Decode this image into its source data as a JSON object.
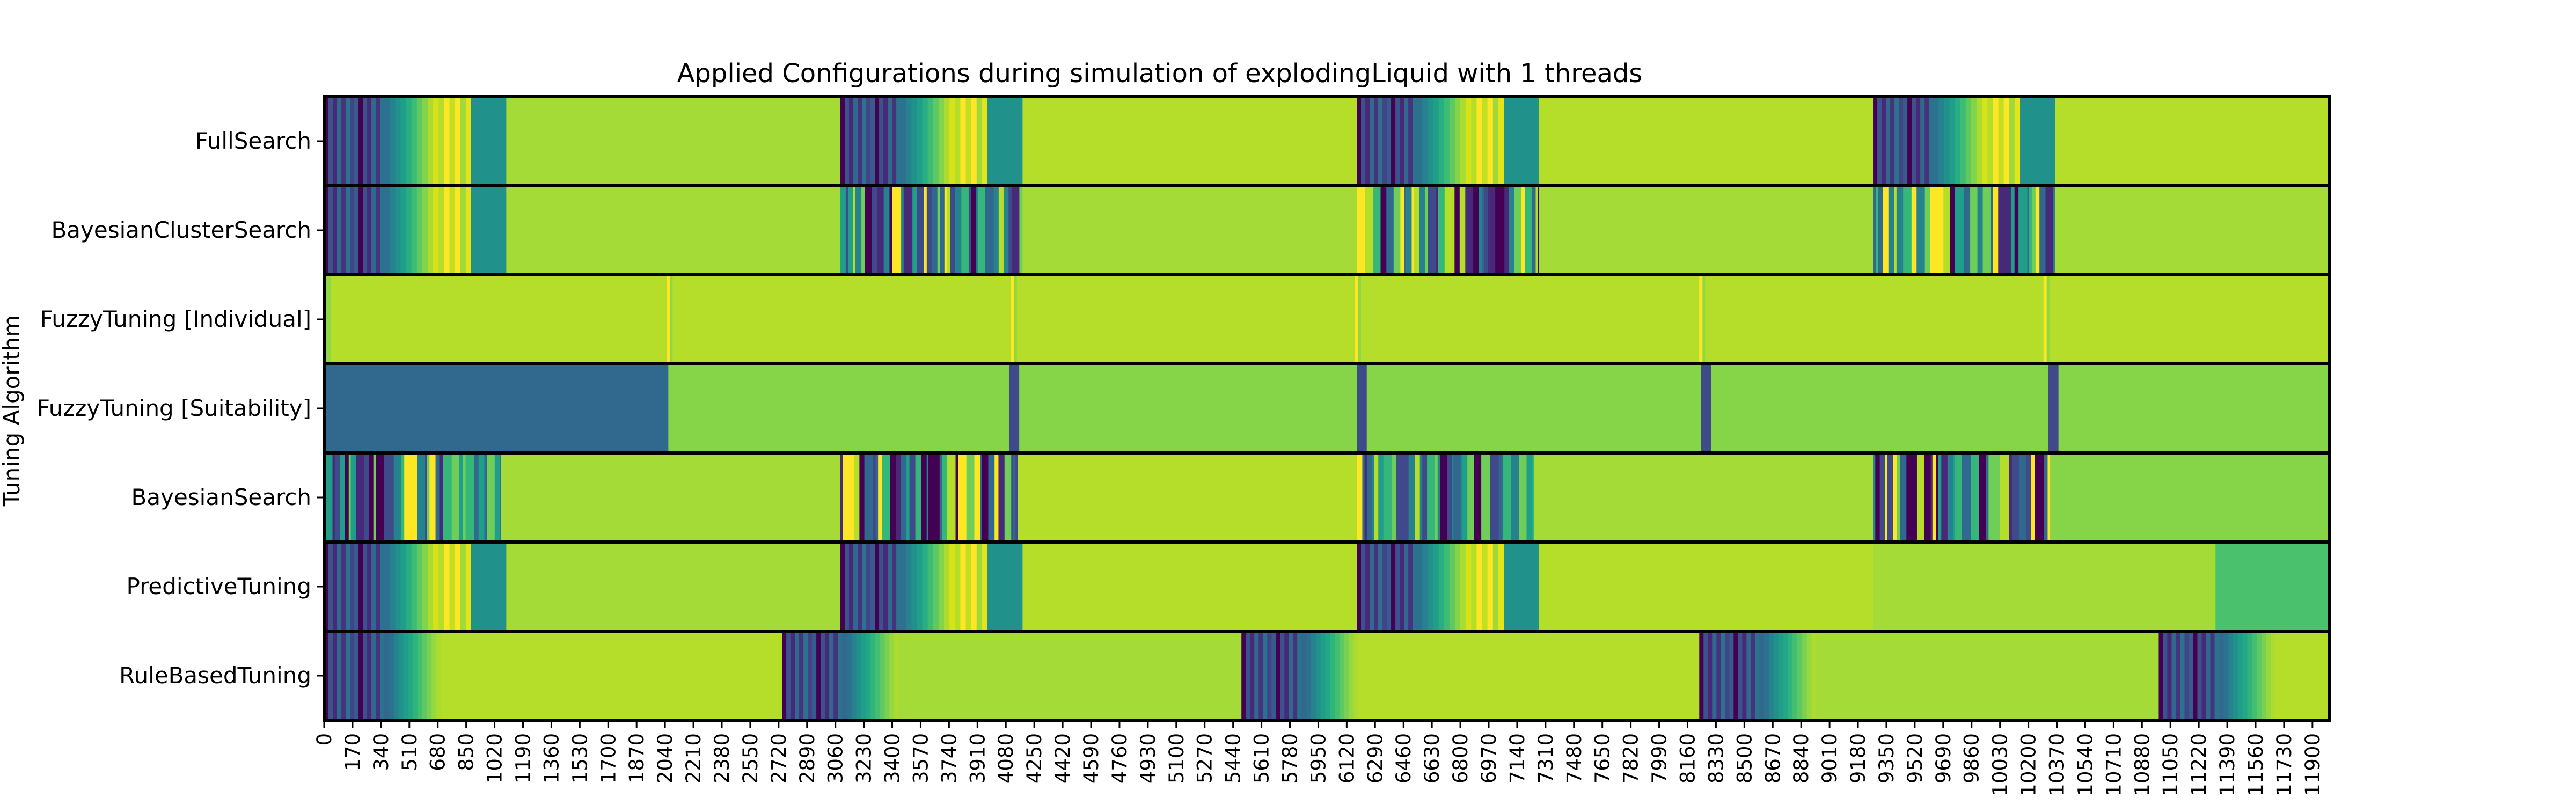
{
  "chart_data": {
    "type": "heatmap",
    "title": "Applied Configurations during simulation of explodingLiquid with 1 threads",
    "xlabel": "",
    "ylabel": "Tuning Algorithm",
    "xlim": [
      0,
      12000
    ],
    "x_ticks": [
      "0",
      "170",
      "340",
      "510",
      "680",
      "850",
      "1020",
      "1190",
      "1360",
      "1530",
      "1700",
      "1870",
      "2040",
      "2210",
      "2380",
      "2550",
      "2720",
      "2890",
      "3060",
      "3230",
      "3400",
      "3570",
      "3740",
      "3910",
      "4080",
      "4250",
      "4420",
      "4590",
      "4760",
      "4930",
      "5100",
      "5270",
      "5440",
      "5610",
      "5780",
      "5950",
      "6120",
      "6290",
      "6460",
      "6630",
      "6800",
      "6970",
      "7140",
      "7310",
      "7480",
      "7650",
      "7820",
      "7990",
      "8160",
      "8330",
      "8500",
      "8670",
      "8840",
      "9010",
      "9180",
      "9350",
      "9520",
      "9690",
      "9860",
      "10030",
      "10200",
      "10370",
      "10540",
      "10710",
      "10880",
      "11050",
      "11220",
      "11390",
      "11560",
      "11730",
      "11900"
    ],
    "x_tick_step": 170,
    "colormap": "viridis",
    "rows": [
      {
        "name": "FullSearch",
        "segments": [
          {
            "start": 0,
            "end": 360,
            "pattern": "tuning"
          },
          {
            "start": 360,
            "end": 880,
            "pattern": "gradient"
          },
          {
            "start": 880,
            "end": 1090,
            "pattern": "block",
            "color": "#21918c"
          },
          {
            "start": 1090,
            "end": 3090,
            "pattern": "block",
            "color": "#a5db36"
          },
          {
            "start": 3090,
            "end": 3450,
            "pattern": "tuning"
          },
          {
            "start": 3450,
            "end": 3970,
            "pattern": "gradient"
          },
          {
            "start": 3970,
            "end": 4180,
            "pattern": "block",
            "color": "#21918c"
          },
          {
            "start": 4180,
            "end": 6180,
            "pattern": "block",
            "color": "#b5de2b"
          },
          {
            "start": 6180,
            "end": 6540,
            "pattern": "tuning"
          },
          {
            "start": 6540,
            "end": 7060,
            "pattern": "gradient"
          },
          {
            "start": 7060,
            "end": 7270,
            "pattern": "block",
            "color": "#21918c"
          },
          {
            "start": 7270,
            "end": 9270,
            "pattern": "block",
            "color": "#b5de2b"
          },
          {
            "start": 9270,
            "end": 9630,
            "pattern": "tuning"
          },
          {
            "start": 9630,
            "end": 10150,
            "pattern": "gradient"
          },
          {
            "start": 10150,
            "end": 10360,
            "pattern": "block",
            "color": "#21918c"
          },
          {
            "start": 10360,
            "end": 12000,
            "pattern": "block",
            "color": "#b5de2b"
          }
        ]
      },
      {
        "name": "BayesianClusterSearch",
        "segments": [
          {
            "start": 0,
            "end": 360,
            "pattern": "tuning"
          },
          {
            "start": 360,
            "end": 880,
            "pattern": "gradient"
          },
          {
            "start": 880,
            "end": 1090,
            "pattern": "block",
            "color": "#21918c"
          },
          {
            "start": 1090,
            "end": 3090,
            "pattern": "block",
            "color": "#a5db36"
          },
          {
            "start": 3090,
            "end": 4180,
            "pattern": "noisy"
          },
          {
            "start": 4180,
            "end": 6180,
            "pattern": "block",
            "color": "#a5db36"
          },
          {
            "start": 6180,
            "end": 7270,
            "pattern": "noisy"
          },
          {
            "start": 7270,
            "end": 9270,
            "pattern": "block",
            "color": "#a5db36"
          },
          {
            "start": 9270,
            "end": 10360,
            "pattern": "noisy"
          },
          {
            "start": 10360,
            "end": 12000,
            "pattern": "block",
            "color": "#a5db36"
          }
        ]
      },
      {
        "name": "FuzzyTuning [Individual]",
        "segments": [
          {
            "start": 0,
            "end": 40,
            "pattern": "block",
            "color": "#8fd744"
          },
          {
            "start": 40,
            "end": 12000,
            "pattern": "block",
            "color": "#b5de2b"
          }
        ],
        "markers": [
          2060,
          4120,
          6180,
          8240,
          10300
        ]
      },
      {
        "name": "FuzzyTuning [Suitability]",
        "segments": [
          {
            "start": 0,
            "end": 2060,
            "pattern": "block",
            "color": "#31688e"
          },
          {
            "start": 2060,
            "end": 4100,
            "pattern": "block",
            "color": "#86d549"
          },
          {
            "start": 4100,
            "end": 4160,
            "pattern": "block",
            "color": "#3e4a89"
          },
          {
            "start": 4160,
            "end": 6180,
            "pattern": "block",
            "color": "#86d549"
          },
          {
            "start": 6180,
            "end": 6240,
            "pattern": "block",
            "color": "#3e4a89"
          },
          {
            "start": 6240,
            "end": 8240,
            "pattern": "block",
            "color": "#86d549"
          },
          {
            "start": 8240,
            "end": 8300,
            "pattern": "block",
            "color": "#3e4a89"
          },
          {
            "start": 8300,
            "end": 10320,
            "pattern": "block",
            "color": "#86d549"
          },
          {
            "start": 10320,
            "end": 10380,
            "pattern": "block",
            "color": "#3e4a89"
          },
          {
            "start": 10380,
            "end": 12000,
            "pattern": "block",
            "color": "#86d549"
          }
        ]
      },
      {
        "name": "BayesianSearch",
        "segments": [
          {
            "start": 0,
            "end": 1060,
            "pattern": "noisy"
          },
          {
            "start": 1060,
            "end": 3090,
            "pattern": "block",
            "color": "#a5db36"
          },
          {
            "start": 3090,
            "end": 4150,
            "pattern": "noisy"
          },
          {
            "start": 4150,
            "end": 6180,
            "pattern": "block",
            "color": "#b5de2b"
          },
          {
            "start": 6180,
            "end": 7240,
            "pattern": "noisy"
          },
          {
            "start": 7240,
            "end": 9270,
            "pattern": "block",
            "color": "#a5db36"
          },
          {
            "start": 9270,
            "end": 10330,
            "pattern": "noisy"
          },
          {
            "start": 10330,
            "end": 12000,
            "pattern": "block",
            "color": "#86d549"
          }
        ]
      },
      {
        "name": "PredictiveTuning",
        "segments": [
          {
            "start": 0,
            "end": 360,
            "pattern": "tuning"
          },
          {
            "start": 360,
            "end": 880,
            "pattern": "gradient"
          },
          {
            "start": 880,
            "end": 1090,
            "pattern": "block",
            "color": "#21918c"
          },
          {
            "start": 1090,
            "end": 3090,
            "pattern": "block",
            "color": "#a5db36"
          },
          {
            "start": 3090,
            "end": 3450,
            "pattern": "tuning"
          },
          {
            "start": 3450,
            "end": 3970,
            "pattern": "gradient"
          },
          {
            "start": 3970,
            "end": 4180,
            "pattern": "block",
            "color": "#21918c"
          },
          {
            "start": 4180,
            "end": 6180,
            "pattern": "block",
            "color": "#b5de2b"
          },
          {
            "start": 6180,
            "end": 6540,
            "pattern": "tuning"
          },
          {
            "start": 6540,
            "end": 7060,
            "pattern": "gradient"
          },
          {
            "start": 7060,
            "end": 7270,
            "pattern": "block",
            "color": "#21918c"
          },
          {
            "start": 7270,
            "end": 9270,
            "pattern": "block",
            "color": "#b5de2b"
          },
          {
            "start": 9270,
            "end": 11320,
            "pattern": "block",
            "color": "#a5db36"
          },
          {
            "start": 11320,
            "end": 12000,
            "pattern": "block",
            "color": "#4ac16d"
          }
        ]
      },
      {
        "name": "RuleBasedTuning",
        "segments": [
          {
            "start": 0,
            "end": 360,
            "pattern": "tuning"
          },
          {
            "start": 360,
            "end": 700,
            "pattern": "fade"
          },
          {
            "start": 700,
            "end": 2740,
            "pattern": "block",
            "color": "#b5de2b"
          },
          {
            "start": 2740,
            "end": 3100,
            "pattern": "tuning"
          },
          {
            "start": 3100,
            "end": 3440,
            "pattern": "fade"
          },
          {
            "start": 3440,
            "end": 5490,
            "pattern": "block",
            "color": "#a5db36"
          },
          {
            "start": 5490,
            "end": 5850,
            "pattern": "tuning"
          },
          {
            "start": 5850,
            "end": 6190,
            "pattern": "fade"
          },
          {
            "start": 6190,
            "end": 8230,
            "pattern": "block",
            "color": "#b5de2b"
          },
          {
            "start": 8230,
            "end": 8590,
            "pattern": "tuning"
          },
          {
            "start": 8590,
            "end": 8930,
            "pattern": "fade"
          },
          {
            "start": 8930,
            "end": 10980,
            "pattern": "block",
            "color": "#a5db36"
          },
          {
            "start": 10980,
            "end": 11340,
            "pattern": "tuning"
          },
          {
            "start": 11340,
            "end": 11680,
            "pattern": "fade"
          },
          {
            "start": 11680,
            "end": 12000,
            "pattern": "block",
            "color": "#b5de2b"
          }
        ]
      }
    ]
  }
}
